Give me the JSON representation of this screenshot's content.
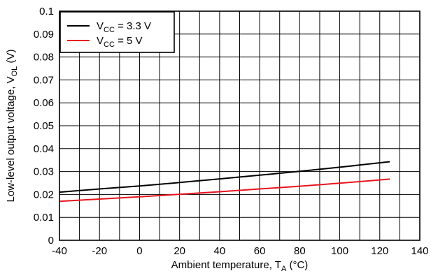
{
  "chart_data": {
    "type": "line",
    "xlabel": {
      "main": "Ambient temperature, T",
      "sub": "A",
      "unit": " (°C)"
    },
    "ylabel": {
      "main": "Low-level output voltage, V",
      "sub": "OL",
      "unit": " (V)"
    },
    "xlim": [
      -40,
      140
    ],
    "ylim": [
      0,
      0.1
    ],
    "x_ticks": [
      -40,
      -20,
      0,
      20,
      40,
      60,
      80,
      100,
      120,
      140
    ],
    "x_tick_labels": [
      "-40",
      "-20",
      "0",
      "20",
      "40",
      "60",
      "80",
      "100",
      "120",
      "140"
    ],
    "y_ticks": [
      0,
      0.01,
      0.02,
      0.03,
      0.04,
      0.05,
      0.06,
      0.07,
      0.08,
      0.09,
      0.1
    ],
    "y_tick_labels": [
      "0",
      "0.01",
      "0.02",
      "0.03",
      "0.04",
      "0.05",
      "0.06",
      "0.07",
      "0.08",
      "0.09",
      "0.1"
    ],
    "grid": true,
    "legend_position": "top-left",
    "series": [
      {
        "name": {
          "main": "V",
          "sub": "CC",
          "rest": " = 3.3 V"
        },
        "color": "#000000",
        "x": [
          -40,
          -20,
          0,
          20,
          40,
          60,
          80,
          100,
          125
        ],
        "y": [
          0.021,
          0.0224,
          0.0237,
          0.0252,
          0.0268,
          0.0284,
          0.0301,
          0.0319,
          0.0343
        ]
      },
      {
        "name": {
          "main": "V",
          "sub": "CC",
          "rest": " = 5 V"
        },
        "color": "#e8141e",
        "x": [
          -40,
          -20,
          0,
          20,
          40,
          60,
          80,
          100,
          125
        ],
        "y": [
          0.017,
          0.018,
          0.019,
          0.0201,
          0.0212,
          0.0224,
          0.0236,
          0.0249,
          0.0267
        ]
      }
    ]
  }
}
